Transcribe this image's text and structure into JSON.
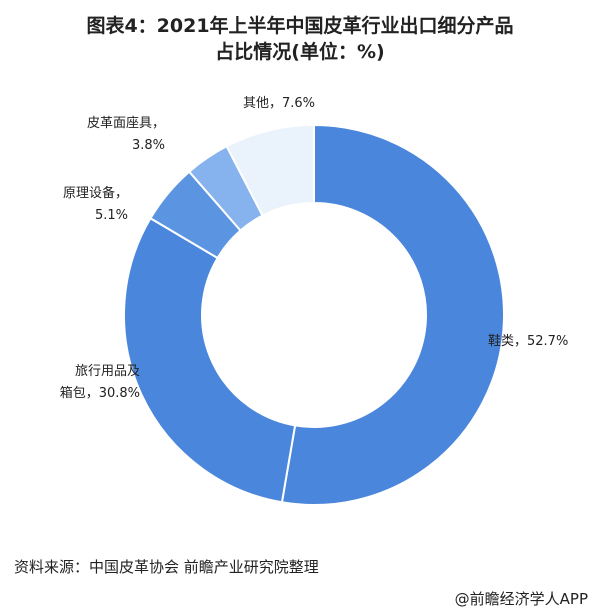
{
  "title_line1": "图表4：2021年上半年中国皮革行业出口细分产品",
  "title_line2": "占比情况(单位：%)",
  "source": "资料来源：中国皮革协会 前瞻产业研究院整理",
  "brand": "@前瞻经济学人APP",
  "chart_data": {
    "type": "pie",
    "title": "图表4：2021年上半年中国皮革行业出口细分产品占比情况(单位：%)",
    "unit": "%",
    "slices": [
      {
        "label": "鞋类",
        "value": 52.7,
        "label_lines": [
          "鞋类，52.7%"
        ],
        "color": "#4a86dc"
      },
      {
        "label": "旅行用品及箱包",
        "value": 30.8,
        "label_lines": [
          "旅行用品及",
          "箱包，30.8%"
        ],
        "color": "#4a86dc"
      },
      {
        "label": "原理设备",
        "value": 5.1,
        "label_lines": [
          "原理设备，",
          "5.1%"
        ],
        "color": "#5b95e2"
      },
      {
        "label": "皮革面座具",
        "value": 3.8,
        "label_lines": [
          "皮革面座具，",
          "3.8%"
        ],
        "color": "#86b2ee"
      },
      {
        "label": "其他",
        "value": 7.6,
        "label_lines": [
          "其他，7.6%"
        ],
        "color": "#eaf2fc"
      }
    ]
  }
}
